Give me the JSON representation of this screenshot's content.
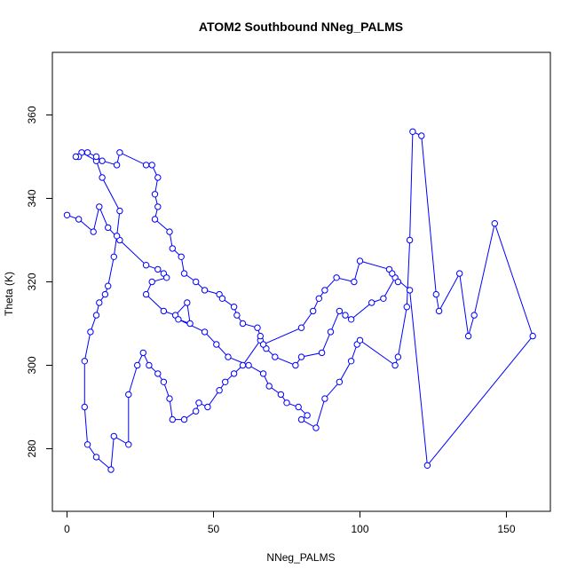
{
  "chart_data": {
    "type": "line",
    "title": "ATOM2 Southbound NNeg_PALMS",
    "xlabel": "NNeg_PALMS",
    "ylabel": "Theta (K)",
    "xlim": [
      -5,
      165
    ],
    "ylim": [
      265,
      375
    ],
    "xticks": [
      0,
      50,
      100,
      150
    ],
    "yticks": [
      280,
      300,
      320,
      340,
      360
    ],
    "grid": false,
    "legend": "none",
    "markers": "open-circle",
    "color": "#0000ff",
    "series": [
      {
        "x": [
          0,
          4,
          9,
          11,
          14,
          18,
          27,
          31,
          33,
          34,
          29,
          27,
          33,
          37,
          41,
          42,
          38,
          47,
          51,
          55,
          62,
          67,
          69,
          73,
          75,
          79,
          82,
          80,
          85,
          88,
          93,
          97,
          99,
          100,
          112,
          113,
          116,
          117,
          118,
          121,
          126,
          127,
          134,
          137,
          139,
          146,
          159,
          123,
          117,
          112,
          108,
          104,
          97,
          95,
          93,
          90,
          87,
          80,
          78,
          71,
          68,
          66,
          60,
          57,
          54,
          52,
          48,
          45,
          44,
          40,
          36,
          35,
          33,
          31,
          28,
          26,
          24,
          21,
          21,
          16,
          15,
          10,
          7,
          6,
          6,
          8,
          10,
          11,
          13,
          14,
          16,
          17,
          18,
          12,
          10,
          5,
          4,
          3,
          7,
          10,
          12,
          17,
          18,
          27,
          29,
          31,
          30,
          31,
          30,
          35,
          36,
          39,
          40,
          44,
          47,
          52,
          53,
          57,
          58,
          60,
          65,
          66,
          67,
          80,
          84,
          86,
          88,
          92,
          98,
          100,
          110,
          111,
          113
        ],
        "y": [
          336,
          335,
          332,
          338,
          333,
          330,
          324,
          323,
          322,
          321,
          320,
          317,
          313,
          312,
          315,
          310,
          311,
          308,
          305,
          302,
          300,
          298,
          295,
          293,
          291,
          290,
          288,
          287,
          285,
          292,
          296,
          301,
          305,
          306,
          300,
          302,
          314,
          330,
          356,
          355,
          317,
          313,
          322,
          307,
          312,
          334,
          307,
          276,
          318,
          321,
          316,
          315,
          311,
          312,
          313,
          308,
          303,
          302,
          300,
          302,
          304,
          306,
          300,
          298,
          296,
          294,
          290,
          291,
          289,
          287,
          287,
          292,
          296,
          298,
          300,
          303,
          300,
          293,
          281,
          283,
          275,
          278,
          281,
          290,
          301,
          308,
          312,
          315,
          317,
          319,
          326,
          331,
          337,
          345,
          349,
          351,
          350,
          350,
          351,
          350,
          349,
          348,
          351,
          348,
          348,
          345,
          341,
          338,
          335,
          332,
          328,
          326,
          322,
          320,
          318,
          317,
          316,
          314,
          312,
          310,
          309,
          307,
          305,
          309,
          313,
          316,
          318,
          321,
          320,
          325,
          323,
          322,
          320
        ]
      }
    ]
  }
}
